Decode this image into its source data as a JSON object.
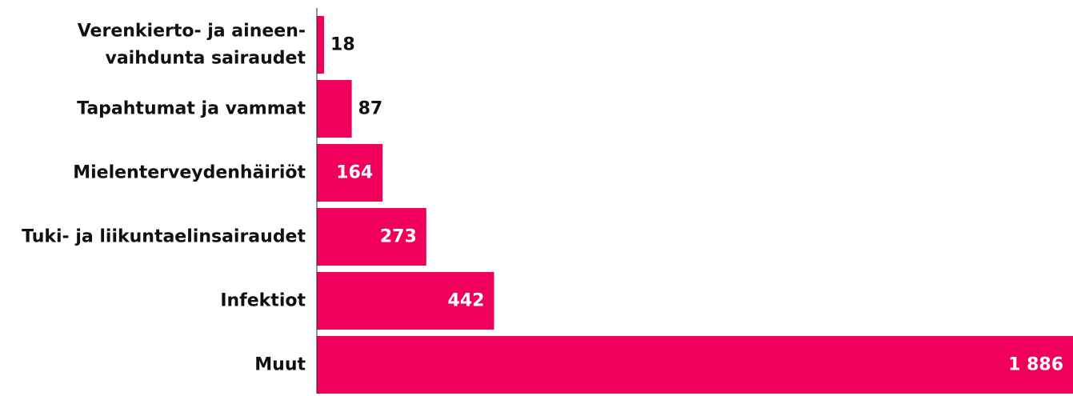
{
  "chart_data": {
    "type": "bar",
    "orientation": "horizontal",
    "categories": [
      [
        "Verenkierto- ja aineen-",
        "vaihdunta sairaudet"
      ],
      [
        "Tapahtumat ja vammat"
      ],
      [
        "Mielenterveydenhäiriöt"
      ],
      [
        "Tuki- ja liikuntaelinsairaudet"
      ],
      [
        "Infektiot"
      ],
      [
        "Muut"
      ]
    ],
    "values": [
      18,
      87,
      164,
      273,
      442,
      1886
    ],
    "value_labels": [
      "18",
      "87",
      "164",
      "273",
      "442",
      "1 886"
    ],
    "title": "",
    "xlabel": "",
    "ylabel": "",
    "xlim": [
      0,
      1886
    ],
    "grid": false,
    "legend": "none"
  },
  "colors": {
    "bar": "#f0005a",
    "axis": "#222222",
    "label_inside": "#ffffff",
    "label_outside": "#111111"
  }
}
